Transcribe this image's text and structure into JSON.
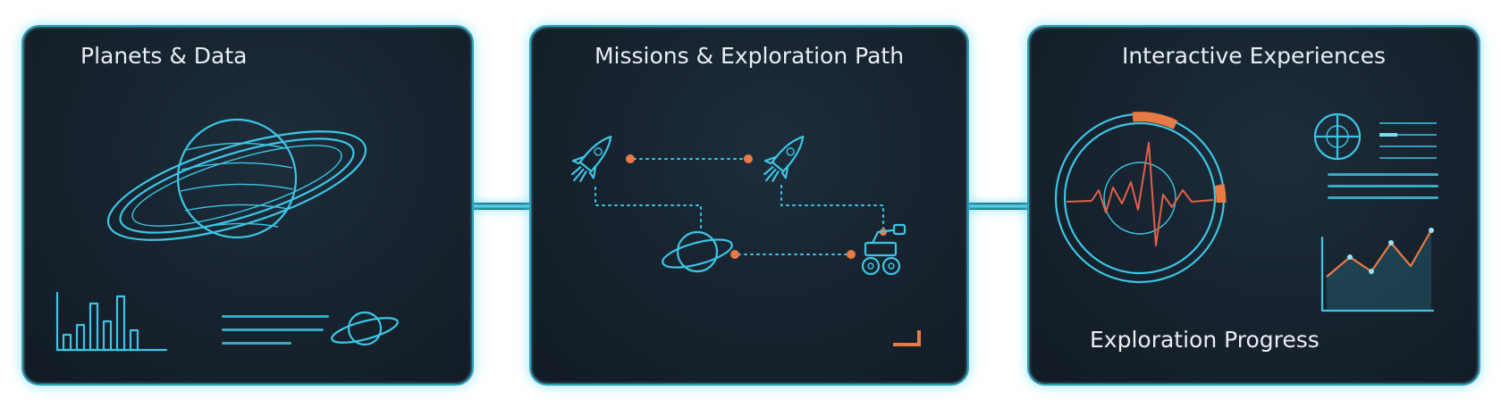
{
  "panels": [
    {
      "title": "Planets & Data"
    },
    {
      "title": "Missions & Exploration Path"
    },
    {
      "title": "Interactive Experiences",
      "subtitle": "Exploration Progress"
    }
  ],
  "colors": {
    "panel_bg": "#16222d",
    "glow": "#3cc6e6",
    "accent": "#e87a45",
    "text": "#e9eef2"
  },
  "icons": [
    "ringed-planet-icon",
    "bar-chart-icon",
    "small-planet-icon",
    "rocket-icon",
    "rover-icon",
    "heartbeat-radar-icon",
    "compass-icon",
    "line-chart-icon"
  ]
}
